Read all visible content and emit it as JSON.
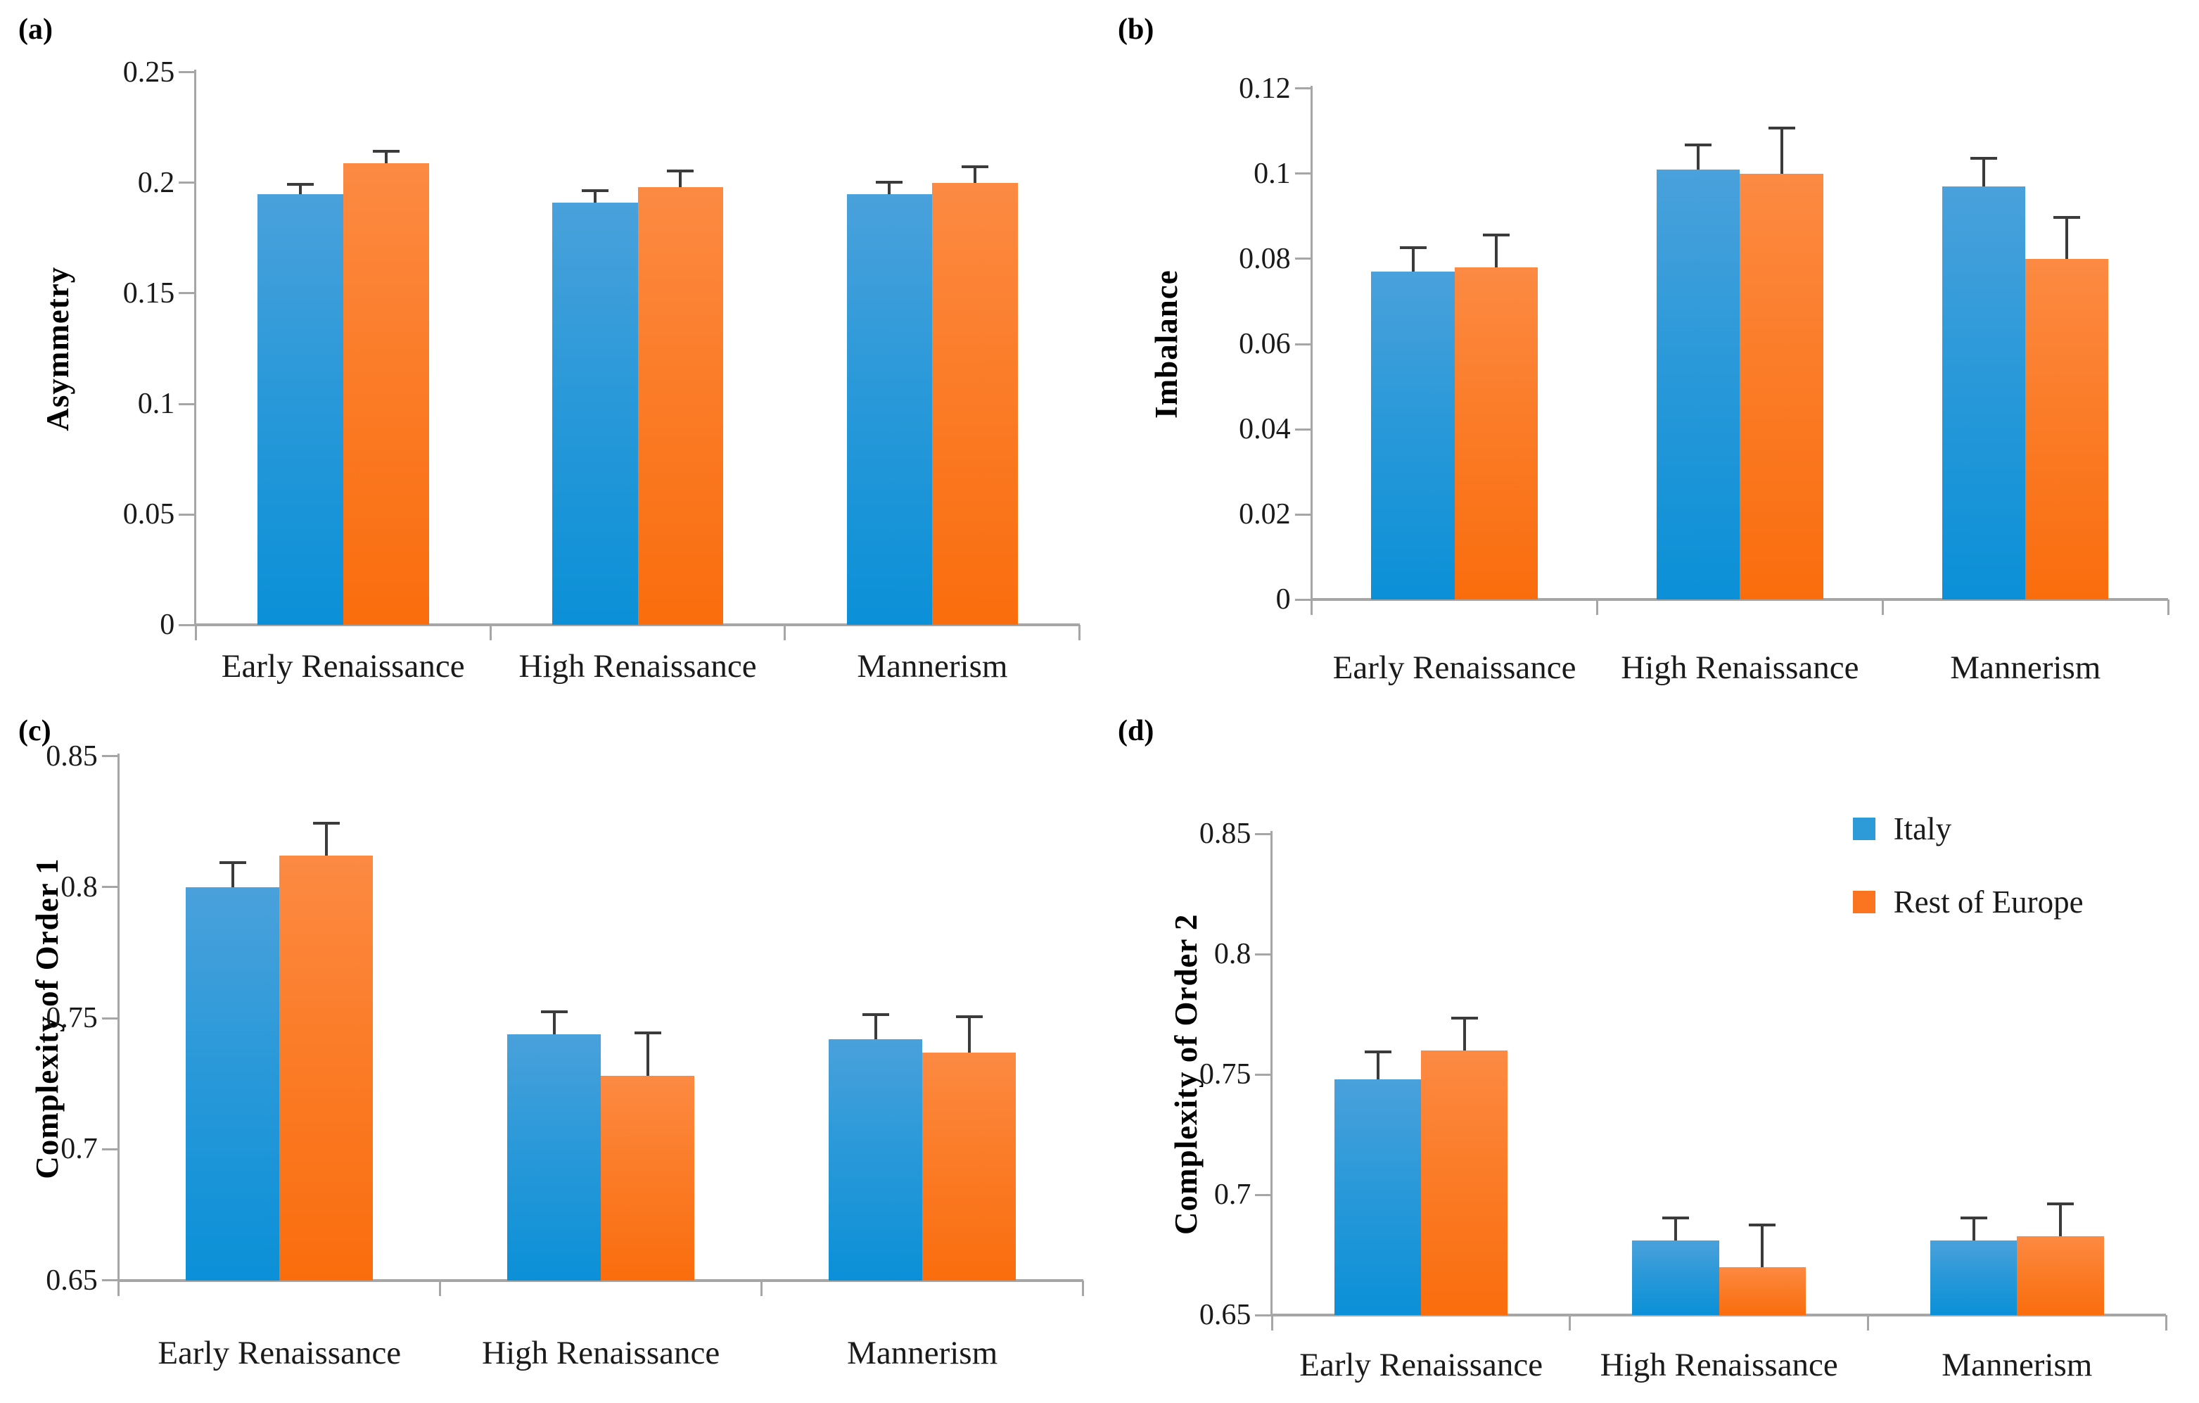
{
  "figure": {
    "colors": {
      "italy_gradient_top": "#4AA1DB",
      "italy_gradient_bottom": "#0B90D7",
      "europe_gradient_top": "#FC8A43",
      "europe_gradient_bottom": "#FA6D0D",
      "italy_swatch": "#2D9BD8",
      "europe_swatch": "#FB7420",
      "axis": "#A6A6A6",
      "error_bar": "#3B3B3B",
      "text": "#111111"
    },
    "legend": {
      "position": "top-right of panel (d)",
      "items": [
        {
          "label": "Italy",
          "color": "#2D9BD8"
        },
        {
          "label": "Rest of Europe",
          "color": "#FB7420"
        }
      ]
    }
  },
  "chart_data": [
    {
      "panel_label": "(a)",
      "type": "bar",
      "title": "",
      "xlabel": "",
      "ylabel": "Asymmetry",
      "categories": [
        "Early Renaissance",
        "High Renaissance",
        "Mannerism"
      ],
      "ylim": [
        0,
        0.25
      ],
      "yticks": [
        0,
        0.05,
        0.1,
        0.15,
        0.2,
        0.25
      ],
      "ytick_labels": [
        "0",
        "0.05",
        "0.1",
        "0.15",
        "0.2",
        "0.25"
      ],
      "grid": false,
      "error_bars": "upper only",
      "series": [
        {
          "name": "Italy",
          "values": [
            0.195,
            0.191,
            0.195
          ],
          "err_upper": [
            0.005,
            0.006,
            0.006
          ]
        },
        {
          "name": "Rest of Europe",
          "values": [
            0.209,
            0.198,
            0.2
          ],
          "err_upper": [
            0.006,
            0.008,
            0.008
          ]
        }
      ]
    },
    {
      "panel_label": "(b)",
      "type": "bar",
      "title": "",
      "xlabel": "",
      "ylabel": "Imbalance",
      "categories": [
        "Early Renaissance",
        "High Renaissance",
        "Mannerism"
      ],
      "ylim": [
        0,
        0.12
      ],
      "yticks": [
        0,
        0.02,
        0.04,
        0.06,
        0.08,
        0.1,
        0.12
      ],
      "ytick_labels": [
        "0",
        "0.02",
        "0.04",
        "0.06",
        "0.08",
        "0.1",
        "0.12"
      ],
      "grid": false,
      "error_bars": "upper only",
      "series": [
        {
          "name": "Italy",
          "values": [
            0.077,
            0.101,
            0.097
          ],
          "err_upper": [
            0.006,
            0.006,
            0.007
          ]
        },
        {
          "name": "Rest of Europe",
          "values": [
            0.078,
            0.1,
            0.08
          ],
          "err_upper": [
            0.008,
            0.011,
            0.01
          ]
        }
      ]
    },
    {
      "panel_label": "(c)",
      "type": "bar",
      "title": "",
      "xlabel": "",
      "ylabel": "Complexity of Order 1",
      "categories": [
        "Early Renaissance",
        "High Renaissance",
        "Mannerism"
      ],
      "ylim": [
        0.65,
        0.85
      ],
      "yticks": [
        0.65,
        0.7,
        0.75,
        0.8,
        0.85
      ],
      "ytick_labels": [
        "0.65",
        "0.7",
        "0.75",
        "0.8",
        "0.85"
      ],
      "grid": false,
      "error_bars": "upper only",
      "series": [
        {
          "name": "Italy",
          "values": [
            0.8,
            0.744,
            0.742
          ],
          "err_upper": [
            0.01,
            0.009,
            0.01
          ]
        },
        {
          "name": "Rest of Europe",
          "values": [
            0.812,
            0.728,
            0.737
          ],
          "err_upper": [
            0.013,
            0.017,
            0.014
          ]
        }
      ]
    },
    {
      "panel_label": "(d)",
      "type": "bar",
      "title": "",
      "xlabel": "",
      "ylabel": "Complexity of Order 2",
      "categories": [
        "Early Renaissance",
        "High Renaissance",
        "Mannerism"
      ],
      "ylim": [
        0.65,
        0.85
      ],
      "yticks": [
        0.65,
        0.7,
        0.75,
        0.8,
        0.85
      ],
      "ytick_labels": [
        "0.65",
        "0.7",
        "0.75",
        "0.8",
        "0.85"
      ],
      "grid": false,
      "error_bars": "upper only",
      "has_legend": true,
      "series": [
        {
          "name": "Italy",
          "values": [
            0.748,
            0.681,
            0.681
          ],
          "err_upper": [
            0.012,
            0.01,
            0.01
          ]
        },
        {
          "name": "Rest of Europe",
          "values": [
            0.76,
            0.67,
            0.683
          ],
          "err_upper": [
            0.014,
            0.018,
            0.014
          ]
        }
      ]
    }
  ]
}
